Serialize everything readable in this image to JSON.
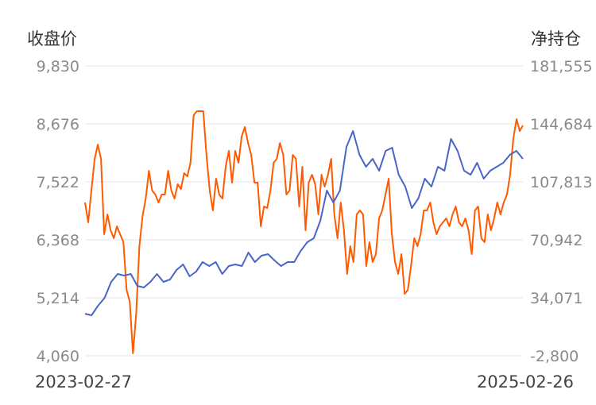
{
  "chart_data": {
    "type": "line",
    "left_axis": {
      "title": "收盘价",
      "ticks": [
        "9,830",
        "8,676",
        "7,522",
        "6,368",
        "5,214",
        "4,060"
      ],
      "range": [
        4060,
        9830
      ]
    },
    "right_axis": {
      "title": "净持仓",
      "ticks": [
        "181,555",
        "144,684",
        "107,813",
        "70,942",
        "34,071",
        "-2,800"
      ],
      "range": [
        -2800,
        181555
      ]
    },
    "x_labels": {
      "start": "2023-02-27",
      "end": "2025-02-26"
    },
    "grid": true,
    "series": [
      {
        "name": "收盘价",
        "axis": "left",
        "color": "#4a65c8",
        "values": [
          4897,
          4866,
          5056,
          5214,
          5530,
          5688,
          5656,
          5688,
          5451,
          5419,
          5530,
          5688,
          5530,
          5577,
          5767,
          5878,
          5641,
          5735,
          5925,
          5846,
          5925,
          5688,
          5846,
          5878,
          5846,
          6115,
          5925,
          6052,
          6083,
          5957,
          5846,
          5925,
          5925,
          6146,
          6320,
          6399,
          6747,
          7348,
          7111,
          7348,
          8217,
          8534,
          8059,
          7822,
          7980,
          7743,
          8138,
          8202,
          7664,
          7427,
          7000,
          7190,
          7585,
          7427,
          7822,
          7743,
          8376,
          8138,
          7743,
          7664,
          7901,
          7585,
          7743,
          7822,
          7901,
          8059,
          8138,
          7980
        ]
      },
      {
        "name": "净持仓",
        "axis": "right",
        "color": "#ff5a00",
        "values": [
          94695,
          82070,
          102270,
          122470,
          131560,
          122470,
          74495,
          87120,
          77020,
          71970,
          79545,
          74495,
          69445,
          39145,
          31570,
          -1255,
          23995,
          66920,
          86110,
          97220,
          114895,
          102270,
          99745,
          94695,
          99745,
          99745,
          114895,
          102270,
          97220,
          106310,
          103280,
          113380,
          111360,
          119945,
          150245,
          152770,
          152770,
          152770,
          124995,
          102270,
          89645,
          109845,
          99745,
          97220,
          117420,
          127520,
          107320,
          127520,
          119945,
          136610,
          142670,
          132570,
          124995,
          107320,
          107320,
          79545,
          92170,
          91160,
          102270,
          119945,
          122470,
          132570,
          124995,
          99745,
          102270,
          124995,
          122470,
          92170,
          117420,
          77020,
          107320,
          112370,
          106310,
          87120,
          112370,
          104795,
          112370,
          122470,
          87120,
          71970,
          94695,
          77020,
          49245,
          66920,
          56820,
          87120,
          89645,
          87120,
          54295,
          69445,
          56820,
          61870,
          84595,
          89645,
          99745,
          109845,
          74495,
          56820,
          49245,
          61870,
          36620,
          39145,
          54295,
          71970,
          66920,
          74495,
          89645,
          89645,
          94695,
          82070,
          74495,
          79545,
          82070,
          84595,
          79545,
          87120,
          92170,
          82070,
          79545,
          84595,
          77020,
          61870,
          89645,
          92170,
          71970,
          69445,
          87120,
          77020,
          84595,
          94695,
          87120,
          94695,
          99745,
          112370,
          135095,
          147720,
          140145,
          143680
        ]
      }
    ]
  }
}
